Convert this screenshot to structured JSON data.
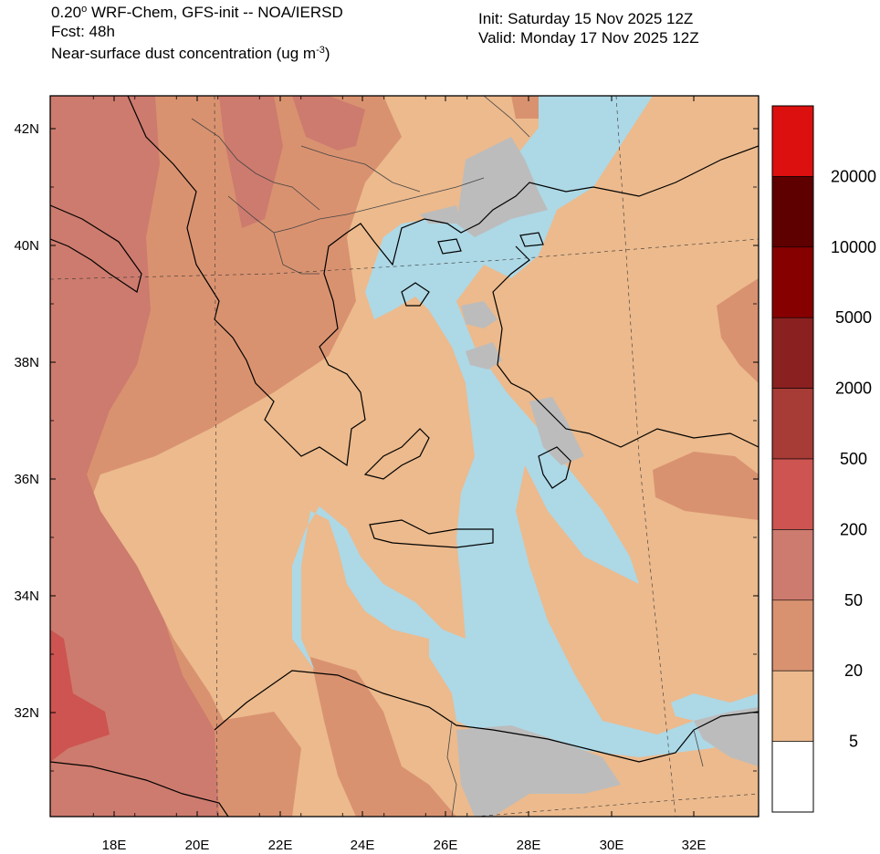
{
  "header": {
    "line1_prefix": "0.20",
    "line1_degree": "o",
    "line1_suffix": " WRF-Chem, GFS-init -- NOA/IERSD",
    "line2": "Fcst: 48h",
    "line3_prefix": "Near-surface dust concentration (ug m",
    "line3_exp": "-3",
    "line3_suffix": ")",
    "init": "Init: Saturday 15 Nov 2025  12Z",
    "valid": "Valid: Monday 17 Nov 2025  12Z"
  },
  "axes": {
    "lat_labels": [
      "42N",
      "40N",
      "38N",
      "36N",
      "34N",
      "32N"
    ],
    "lon_labels": [
      "18E",
      "20E",
      "22E",
      "24E",
      "26E",
      "28E",
      "30E",
      "32E"
    ]
  },
  "colorbar": {
    "labels": [
      "20000",
      "10000",
      "5000",
      "2000",
      "500",
      "200",
      "50",
      "20",
      "5"
    ],
    "colors": [
      "#dd1010",
      "#5e0000",
      "#870000",
      "#8a2020",
      "#a73b36",
      "#cd5450",
      "#cd7b6e",
      "#d99270",
      "#ecba8d",
      "#ffffff"
    ]
  },
  "map_colors": {
    "below_threshold": "#bcbcbc",
    "sea_clean": "#add8e6",
    "dust_5_20": "#ecba8d",
    "dust_20_50": "#d99270",
    "dust_50_200": "#cd7b6e",
    "dust_200_500": "#cd5450"
  }
}
